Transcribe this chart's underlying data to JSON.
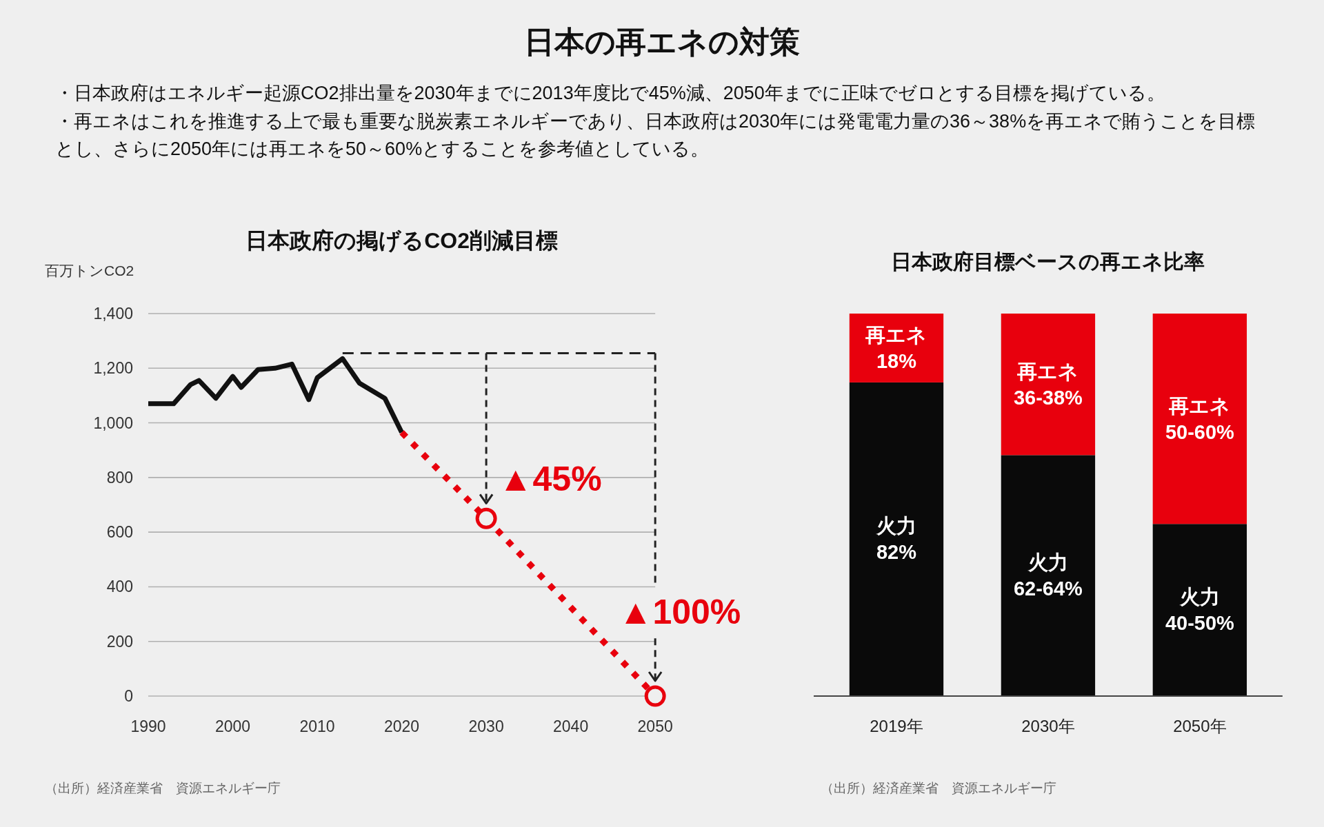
{
  "chart_data": [
    {
      "type": "other",
      "title": "日本の再エネの対策",
      "annotations": [
        "・日本政府はエネルギー起源CO2排出量を2030年までに2013年度比で45%減、2050年までに正味でゼロとする目標を掲げている。",
        "・再エネはこれを推進する上で最も重要な脱炭素エネルギーであり、日本政府は2030年には発電電力量の36～38%を再エネで賄うことを目標とし、さらに2050年には再エネを50～60%とすることを参考値としている。"
      ]
    },
    {
      "type": "line",
      "title": "日本政府の掲げるCO2削減目標",
      "ylabel": "百万トンCO2",
      "xlim": [
        1990,
        2050
      ],
      "ylim": [
        0,
        1400
      ],
      "xticks": [
        1990,
        2000,
        2010,
        2020,
        2030,
        2040,
        2050
      ],
      "yticks": [
        0,
        200,
        400,
        600,
        800,
        {
          "value": 1000,
          "label": "1,000"
        },
        {
          "value": 1200,
          "label": "1,200"
        },
        {
          "value": 1400,
          "label": "1,400"
        }
      ],
      "grid": "y",
      "series": [
        {
          "color": "#111111",
          "x": [
            1990,
            1993,
            1995,
            1996,
            1998,
            2000,
            2001,
            2003,
            2005,
            2007,
            2009,
            2010,
            2013,
            2015,
            2018,
            2020
          ],
          "values": [
            1070,
            1070,
            1140,
            1155,
            1090,
            1170,
            1130,
            1195,
            1200,
            1215,
            1085,
            1165,
            1235,
            1145,
            1090,
            965
          ]
        },
        {
          "color": "#222222",
          "line_style": "dashed",
          "x": [
            2013,
            2050
          ],
          "values": [
            1255,
            1255
          ]
        },
        {
          "color": "#e8000d",
          "line_style": "dotted",
          "x": [
            2020,
            2030,
            2050
          ],
          "values": [
            965,
            650,
            0
          ]
        },
        {
          "type": "scatter",
          "marker": "circle",
          "color": "#e8000d",
          "x": [
            2030,
            2050
          ],
          "values": [
            650,
            0
          ]
        }
      ],
      "annotations": [
        {
          "text": "▲45%",
          "x": 2030,
          "y": 650
        },
        {
          "text": "▲100%",
          "x": 2050,
          "y": 0
        },
        "（出所）経済産業省　資源エネルギー庁"
      ]
    },
    {
      "type": "bar",
      "title": "日本政府目標ベースの再エネ比率",
      "categories": [
        "2019年",
        "2030年",
        "2050年"
      ],
      "stacked": true,
      "tick_labels": "x",
      "series": [
        {
          "name": "火力",
          "color": "#0a0a0a",
          "values": [
            82,
            63,
            45
          ],
          "value_labels": [
            "82%",
            null,
            null
          ]
        },
        {
          "name": "再エネ",
          "color": "#e8000d",
          "values": [
            18,
            37,
            55
          ],
          "value_labels": [
            "18%",
            null,
            null
          ]
        }
      ],
      "annotations": [
        "36-38%",
        "62-64%",
        "50-60%",
        "40-50%",
        "（出所）経済産業省　資源エネルギー庁"
      ]
    }
  ]
}
